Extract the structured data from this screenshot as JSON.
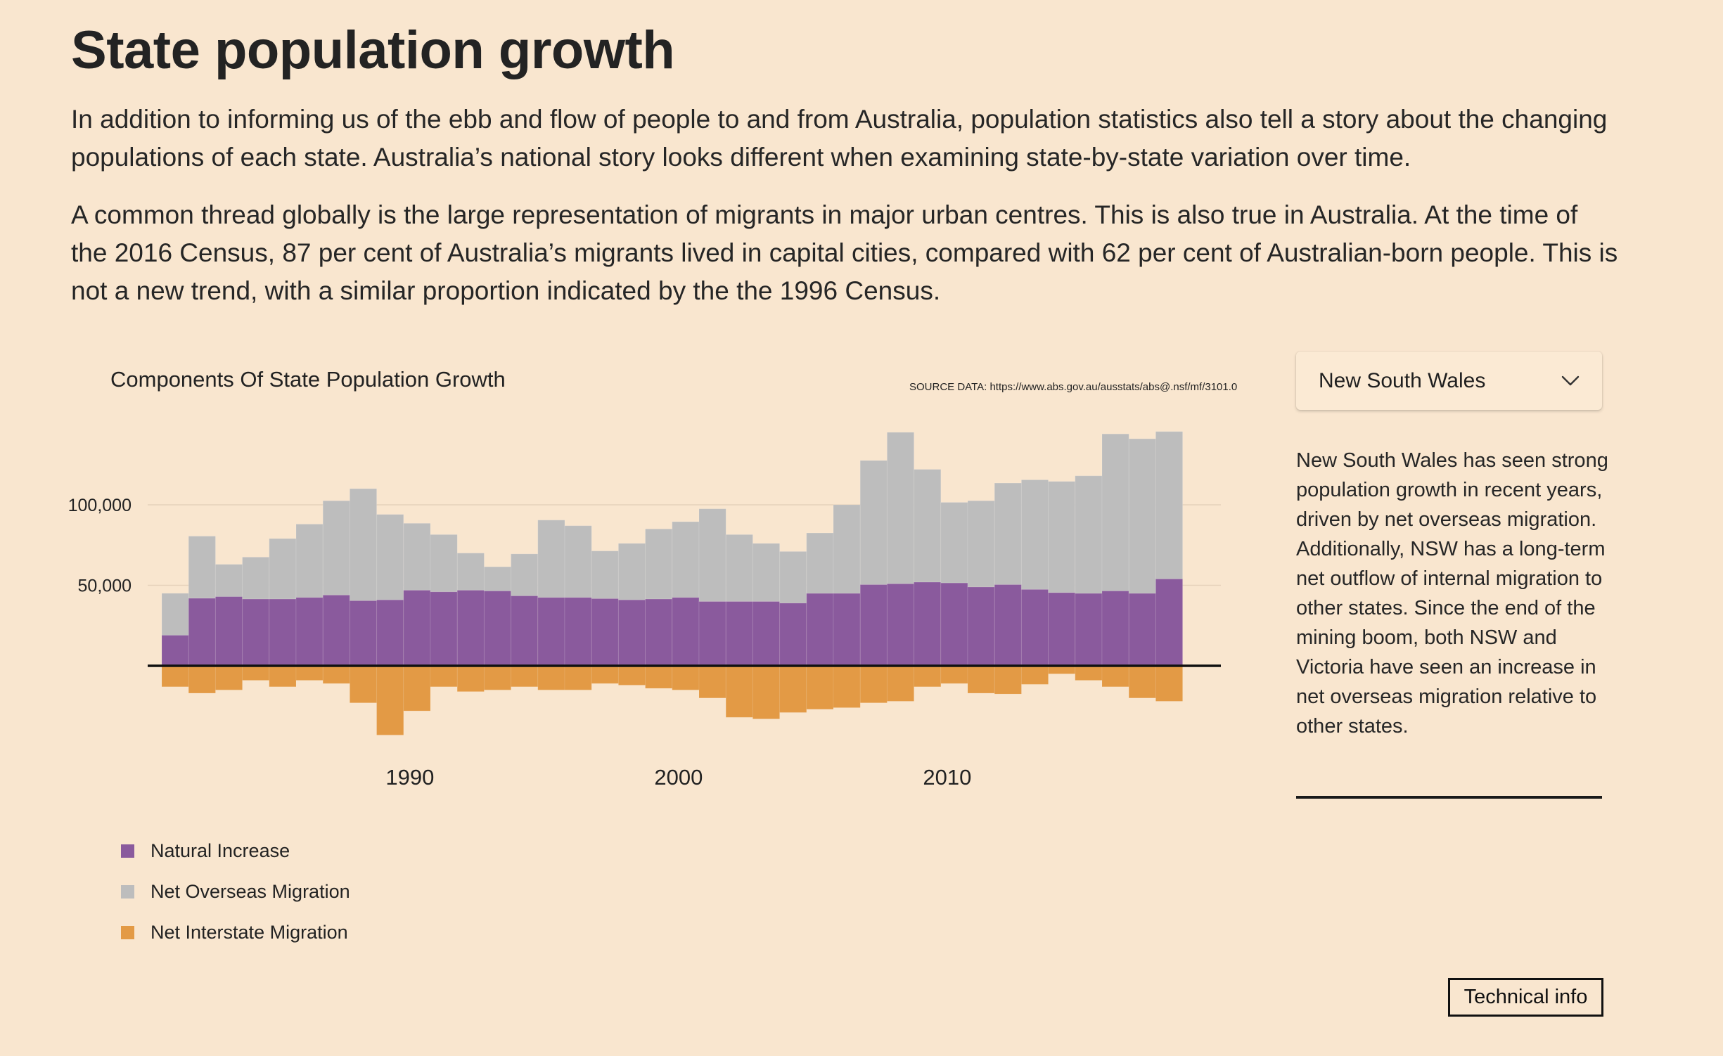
{
  "page": {
    "title": "State population growth",
    "intro_p1": "In addition to informing us of the ebb and flow of people to and from Australia, population statistics also tell a story about the changing populations of each state.  Australia’s national story looks different when examining state-by-state variation over time.",
    "intro_p2": "A common thread globally is the large representation of migrants in major urban centres. This is also true in Australia. At the time of the 2016 Census, 87 per cent of Australia’s migrants lived in capital cities, compared with 62 per cent of Australian-born people. This is not a new trend, with a similar proportion indicated by the the 1996 Census."
  },
  "sidebar": {
    "selected_state": "New South Wales",
    "dropdown_icon": "chevron-down-icon",
    "description": "New South Wales has seen strong population growth in recent years, driven by net overseas migration. Additionally, NSW has a long-term net outflow of internal migration to other states. Since the end of the mining boom, both NSW and Victoria have seen an increase in net overseas migration relative to other states.",
    "technical_info_label": "Technical info"
  },
  "colors": {
    "background": "#f9e6cf",
    "natural_increase": "#8a5a9d",
    "net_overseas_migration": "#bdbdbd",
    "net_interstate_migration": "#e39a45",
    "text": "#222222"
  },
  "chart_data": {
    "type": "bar",
    "stacked": true,
    "title": "Components Of State Population Growth",
    "source": "SOURCE DATA: https://www.abs.gov.au/ausstats/abs@.nsf/mf/3101.0",
    "xlabel": "",
    "ylabel": "",
    "x": [
      1981,
      1982,
      1983,
      1984,
      1985,
      1986,
      1987,
      1988,
      1989,
      1990,
      1991,
      1992,
      1993,
      1994,
      1995,
      1996,
      1997,
      1998,
      1999,
      2000,
      2001,
      2002,
      2003,
      2004,
      2005,
      2006,
      2007,
      2008,
      2009,
      2010,
      2011,
      2012,
      2013,
      2014,
      2015,
      2016,
      2017,
      2018
    ],
    "xticks": [
      1990,
      2000,
      2010
    ],
    "xtick_labels": [
      "1990",
      "2000",
      "2010"
    ],
    "yticks": [
      50000,
      100000
    ],
    "ytick_labels": [
      "50,000",
      "100,000"
    ],
    "ylim": [
      -45000,
      148000
    ],
    "grid": true,
    "legend_position": "bottom-left",
    "series": [
      {
        "name": "Natural Increase",
        "color": "#8a5a9d",
        "values": [
          19000,
          42000,
          43000,
          41500,
          41500,
          42500,
          44000,
          40500,
          41000,
          47000,
          46000,
          47000,
          46500,
          43500,
          42500,
          42500,
          41800,
          41000,
          41500,
          42500,
          40000,
          40000,
          40000,
          39000,
          45000,
          45000,
          50500,
          51000,
          52000,
          51500,
          49000,
          50500,
          47500,
          45500,
          45000,
          46500,
          45000,
          54000
        ]
      },
      {
        "name": "Net Overseas Migration",
        "color": "#bdbdbd",
        "values": [
          26000,
          38500,
          20000,
          26000,
          37500,
          45500,
          58500,
          69500,
          53000,
          41500,
          35500,
          23000,
          15000,
          26000,
          48000,
          44500,
          29500,
          35000,
          43500,
          47000,
          57500,
          41500,
          36000,
          32000,
          37500,
          55000,
          77000,
          94000,
          70000,
          50000,
          53500,
          63000,
          68000,
          69000,
          73000,
          97500,
          96000,
          91500
        ]
      },
      {
        "name": "Net Interstate Migration",
        "color": "#e39a45",
        "values": [
          -13000,
          -17000,
          -15000,
          -9000,
          -13000,
          -9000,
          -11000,
          -23000,
          -43000,
          -28000,
          -13000,
          -16000,
          -15000,
          -13000,
          -15000,
          -15000,
          -11000,
          -12000,
          -14000,
          -15000,
          -20000,
          -32000,
          -33000,
          -29000,
          -27000,
          -26000,
          -23000,
          -22000,
          -13000,
          -11000,
          -17000,
          -17500,
          -11500,
          -5000,
          -9000,
          -13000,
          -20000,
          -22000
        ]
      }
    ]
  }
}
